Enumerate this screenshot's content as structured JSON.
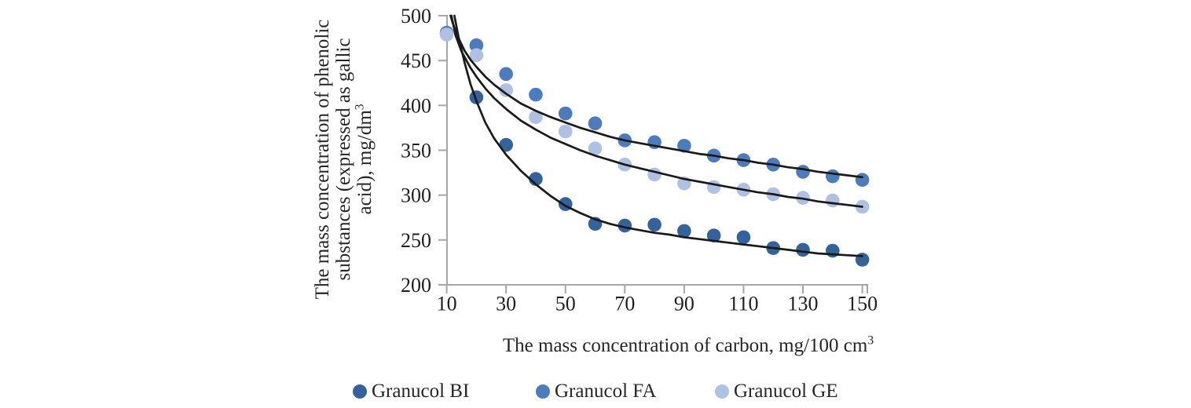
{
  "chart_data": {
    "type": "scatter",
    "title": "",
    "x_label": {
      "text": "The mass concentration of carbon, mg/100 cm",
      "superscript": "3"
    },
    "y_label": {
      "lines": [
        "The mass concentration of phenolic",
        "substances (expressed as gallic",
        "acid), mg/dm"
      ],
      "superscript": "3"
    },
    "x_ticks": [
      10,
      30,
      50,
      70,
      90,
      110,
      130,
      150
    ],
    "y_ticks": [
      200,
      250,
      300,
      350,
      400,
      450,
      500
    ],
    "xlim": [
      10,
      150
    ],
    "ylim": [
      200,
      500
    ],
    "grid": false,
    "legend_position": "bottom",
    "axis_color": "#A6A6A6",
    "trendline_color": "#1A1A1A",
    "x": [
      10,
      20,
      30,
      40,
      50,
      60,
      70,
      80,
      90,
      100,
      110,
      120,
      130,
      140,
      150
    ],
    "series": [
      {
        "name": "Granucol BI",
        "color": "#34639B",
        "values": [
          480,
          409,
          356,
          318,
          290,
          268,
          266,
          267,
          260,
          255,
          253,
          241,
          239,
          238,
          228
        ],
        "trend": [
          [
            12.6,
            500
          ],
          [
            14,
            476
          ],
          [
            16,
            448
          ],
          [
            18,
            424
          ],
          [
            20,
            405
          ],
          [
            23,
            381
          ],
          [
            26,
            363
          ],
          [
            30,
            345
          ],
          [
            35,
            327
          ],
          [
            40,
            312
          ],
          [
            45,
            299
          ],
          [
            50,
            288
          ],
          [
            55,
            280
          ],
          [
            60,
            273
          ],
          [
            65,
            268
          ],
          [
            70,
            264
          ],
          [
            75,
            261
          ],
          [
            80,
            258
          ],
          [
            85,
            256
          ],
          [
            90,
            253
          ],
          [
            95,
            251
          ],
          [
            100,
            249
          ],
          [
            105,
            247
          ],
          [
            110,
            245
          ],
          [
            115,
            243
          ],
          [
            120,
            241
          ],
          [
            125,
            239
          ],
          [
            130,
            237
          ],
          [
            135,
            235
          ],
          [
            140,
            234
          ],
          [
            145,
            233
          ],
          [
            150,
            232
          ]
        ]
      },
      {
        "name": "Granucol FA",
        "color": "#4C7CBE",
        "values": [
          481,
          467,
          435,
          412,
          391,
          380,
          361,
          359,
          355,
          344,
          339,
          334,
          326,
          321,
          317
        ],
        "trend": [
          [
            11.3,
            500
          ],
          [
            12,
            492
          ],
          [
            13,
            483
          ],
          [
            14,
            475
          ],
          [
            15,
            468
          ],
          [
            16,
            461
          ],
          [
            18,
            451
          ],
          [
            20,
            443
          ],
          [
            23,
            432
          ],
          [
            26,
            423
          ],
          [
            30,
            413
          ],
          [
            35,
            402
          ],
          [
            40,
            394
          ],
          [
            45,
            387
          ],
          [
            50,
            381
          ],
          [
            55,
            375
          ],
          [
            60,
            370
          ],
          [
            65,
            365
          ],
          [
            70,
            361
          ],
          [
            75,
            358
          ],
          [
            80,
            355
          ],
          [
            85,
            352
          ],
          [
            90,
            349
          ],
          [
            95,
            346
          ],
          [
            100,
            344
          ],
          [
            105,
            341
          ],
          [
            110,
            339
          ],
          [
            115,
            336
          ],
          [
            120,
            334
          ],
          [
            125,
            331
          ],
          [
            130,
            329
          ],
          [
            135,
            326
          ],
          [
            140,
            324
          ],
          [
            145,
            322
          ],
          [
            150,
            320
          ]
        ]
      },
      {
        "name": "Granucol GE",
        "color": "#AFC1E3",
        "values": [
          479,
          456,
          417,
          387,
          371,
          352,
          334,
          323,
          313,
          309,
          306,
          301,
          297,
          294,
          287
        ],
        "trend": [
          [
            11.6,
            500
          ],
          [
            13,
            478
          ],
          [
            15,
            460
          ],
          [
            18,
            442
          ],
          [
            20,
            432
          ],
          [
            23,
            419
          ],
          [
            26,
            408
          ],
          [
            30,
            396
          ],
          [
            35,
            383
          ],
          [
            40,
            373
          ],
          [
            45,
            364
          ],
          [
            50,
            357
          ],
          [
            55,
            350
          ],
          [
            60,
            344
          ],
          [
            65,
            339
          ],
          [
            70,
            334
          ],
          [
            75,
            330
          ],
          [
            80,
            326
          ],
          [
            85,
            322
          ],
          [
            90,
            318
          ],
          [
            95,
            315
          ],
          [
            100,
            312
          ],
          [
            105,
            309
          ],
          [
            110,
            306
          ],
          [
            115,
            303
          ],
          [
            120,
            301
          ],
          [
            125,
            298
          ],
          [
            130,
            296
          ],
          [
            135,
            293
          ],
          [
            140,
            291
          ],
          [
            145,
            289
          ],
          [
            150,
            287
          ]
        ]
      }
    ]
  }
}
